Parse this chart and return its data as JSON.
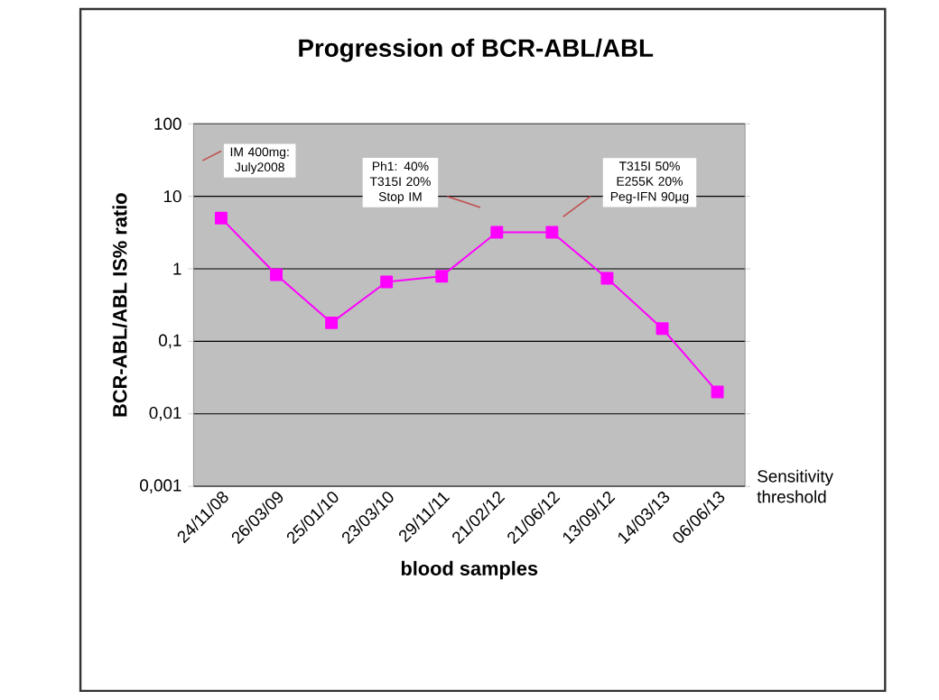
{
  "chart_data": {
    "type": "line",
    "title": "Progression of  BCR-ABL/ABL",
    "xlabel": "blood samples",
    "ylabel": "BCR-ABL/ABL IS% ratio",
    "categories": [
      "24/11/08",
      "26/03/09",
      "25/01/10",
      "23/03/10",
      "29/11/11",
      "21/02/12",
      "21/06/12",
      "13/09/12",
      "14/03/13",
      "06/06/13"
    ],
    "series": [
      {
        "color": "#ff00ff",
        "values": [
          5,
          0.83,
          0.18,
          0.66,
          0.79,
          3.2,
          3.2,
          0.74,
          0.15,
          0.02
        ]
      }
    ],
    "log": "y",
    "ylim": [
      0.001,
      100
    ],
    "yticks": [
      {
        "value": 0.001,
        "label": "0,001"
      },
      {
        "value": 0.01,
        "label": "0,01"
      },
      {
        "value": 0.1,
        "label": "0,1"
      },
      1,
      10,
      100
    ],
    "grid": "y",
    "marker": "square",
    "line_style": "solid",
    "annotations": [
      "IM 400mg: July2008",
      "Ph1: 40% T315I 20% Stop IM",
      "T315I 50% E255K 20% Peg-IFN 90µg",
      "Sensitivity threshold"
    ]
  }
}
